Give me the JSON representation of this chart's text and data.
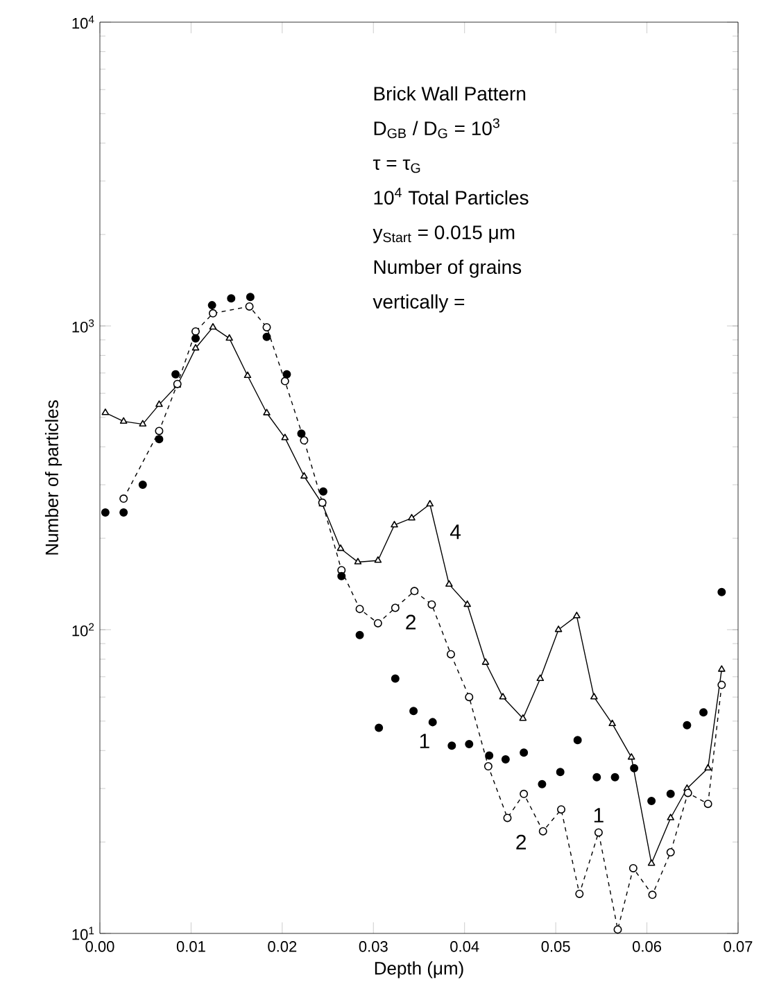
{
  "chart_data": {
    "type": "line",
    "xlabel": "Depth (μm)",
    "ylabel": "Number of particles",
    "log": "y",
    "grid": false,
    "xlim": [
      0,
      0.07
    ],
    "xticks": [
      {
        "value": 0,
        "label": "0.00"
      },
      {
        "value": 0.01,
        "label": "0.01"
      },
      {
        "value": 0.02,
        "label": "0.02"
      },
      {
        "value": 0.03,
        "label": "0.03"
      },
      {
        "value": 0.04,
        "label": "0.04"
      },
      {
        "value": 0.05,
        "label": "0.05"
      },
      {
        "value": 0.06,
        "label": "0.06"
      },
      {
        "value": 0.07,
        "label": "0.07"
      }
    ],
    "ylim": [
      10,
      10000
    ],
    "yticks": [
      {
        "value": 10,
        "label": "10$^{1}$"
      },
      {
        "value": 100,
        "label": "10$^{2}$"
      },
      {
        "value": 1000,
        "label": "10$^{3}$"
      },
      {
        "value": 10000,
        "label": "10$^{4}$"
      }
    ],
    "series": [
      {
        "color": "#000000",
        "marker": "triangle",
        "line_style": "solid",
        "x": [
          0.0006,
          0.0026,
          0.0047,
          0.0065,
          0.0085,
          0.0105,
          0.0124,
          0.0142,
          0.0162,
          0.0183,
          0.0203,
          0.0224,
          0.0244,
          0.0264,
          0.0283,
          0.0305,
          0.0323,
          0.0342,
          0.0362,
          0.0383,
          0.0403,
          0.0423,
          0.0442,
          0.0464,
          0.0483,
          0.0503,
          0.0523,
          0.0542,
          0.0562,
          0.0583,
          0.0605,
          0.0626,
          0.0644,
          0.0667,
          0.0682
        ],
        "values": [
          518,
          485,
          475,
          551,
          638,
          845,
          990,
          910,
          686,
          517,
          428,
          320,
          259,
          185,
          167,
          169,
          221,
          233,
          259,
          141,
          121,
          78,
          60,
          51,
          69,
          100,
          111,
          60,
          49,
          38,
          17,
          24,
          30,
          35,
          74
        ]
      },
      {
        "color": "#000000",
        "marker": "circle",
        "line_style": "dashed",
        "x": [
          0.0026,
          0.0065,
          0.0085,
          0.0105,
          0.0124,
          0.0164,
          0.0183,
          0.0203,
          0.0224,
          0.0244,
          0.0265,
          0.0285,
          0.0305,
          0.0324,
          0.0345,
          0.0364,
          0.0385,
          0.0405,
          0.0426,
          0.0447,
          0.0465,
          0.0486,
          0.0506,
          0.0526,
          0.0547,
          0.0568,
          0.0585,
          0.0606,
          0.0626,
          0.0645,
          0.0667,
          0.0682
        ],
        "values": [
          270,
          451,
          644,
          959,
          1100,
          1159,
          990,
          658,
          420,
          262,
          157,
          117,
          105,
          118,
          134,
          121,
          83,
          60,
          35.5,
          24,
          28.8,
          21.7,
          25.6,
          13.5,
          21.5,
          10.3,
          16.4,
          13.4,
          18.5,
          29,
          26.7,
          65.8
        ]
      },
      {
        "type": "scatter",
        "color": "#000000",
        "marker": "circle",
        "x": [
          0.0006,
          0.0026,
          0.0047,
          0.0065,
          0.0083,
          0.0105,
          0.0123,
          0.0144,
          0.0165,
          0.0183,
          0.0205,
          0.0221,
          0.0245,
          0.0265,
          0.0285,
          0.0306,
          0.0324,
          0.0344,
          0.0365,
          0.0386,
          0.0405,
          0.0427,
          0.0445,
          0.0465,
          0.0485,
          0.0505,
          0.0524,
          0.0545,
          0.0565,
          0.0586,
          0.0605,
          0.0626,
          0.0644,
          0.0662,
          0.0682
        ],
        "values": [
          243,
          243,
          300,
          424,
          693,
          910,
          1170,
          1233,
          1245,
          920,
          693,
          442,
          285,
          150,
          96,
          47.5,
          69,
          54,
          49.6,
          41.5,
          42,
          38.5,
          37.4,
          39.4,
          31,
          34,
          43.3,
          32.7,
          32.7,
          35,
          27.3,
          28.8,
          48.5,
          53.4,
          133
        ]
      }
    ],
    "annotations": [
      "Brick Wall Pattern",
      "D$_{GB}$ / D$_{G}$ = 10$^{3}$",
      "τ = τ$_{G}$",
      "10$^{4}$ Total Particles",
      "y$_{Start}$ = 0.015 μm",
      "Number of grains",
      "vertically =",
      {
        "text": "4",
        "x": 0.039,
        "y": 210
      },
      {
        "text": "2",
        "x": 0.0341,
        "y": 106
      },
      {
        "text": "1",
        "x": 0.0356,
        "y": 43
      },
      {
        "text": "2",
        "x": 0.0462,
        "y": 20
      },
      {
        "text": "1",
        "x": 0.0547,
        "y": 24.5
      }
    ]
  }
}
